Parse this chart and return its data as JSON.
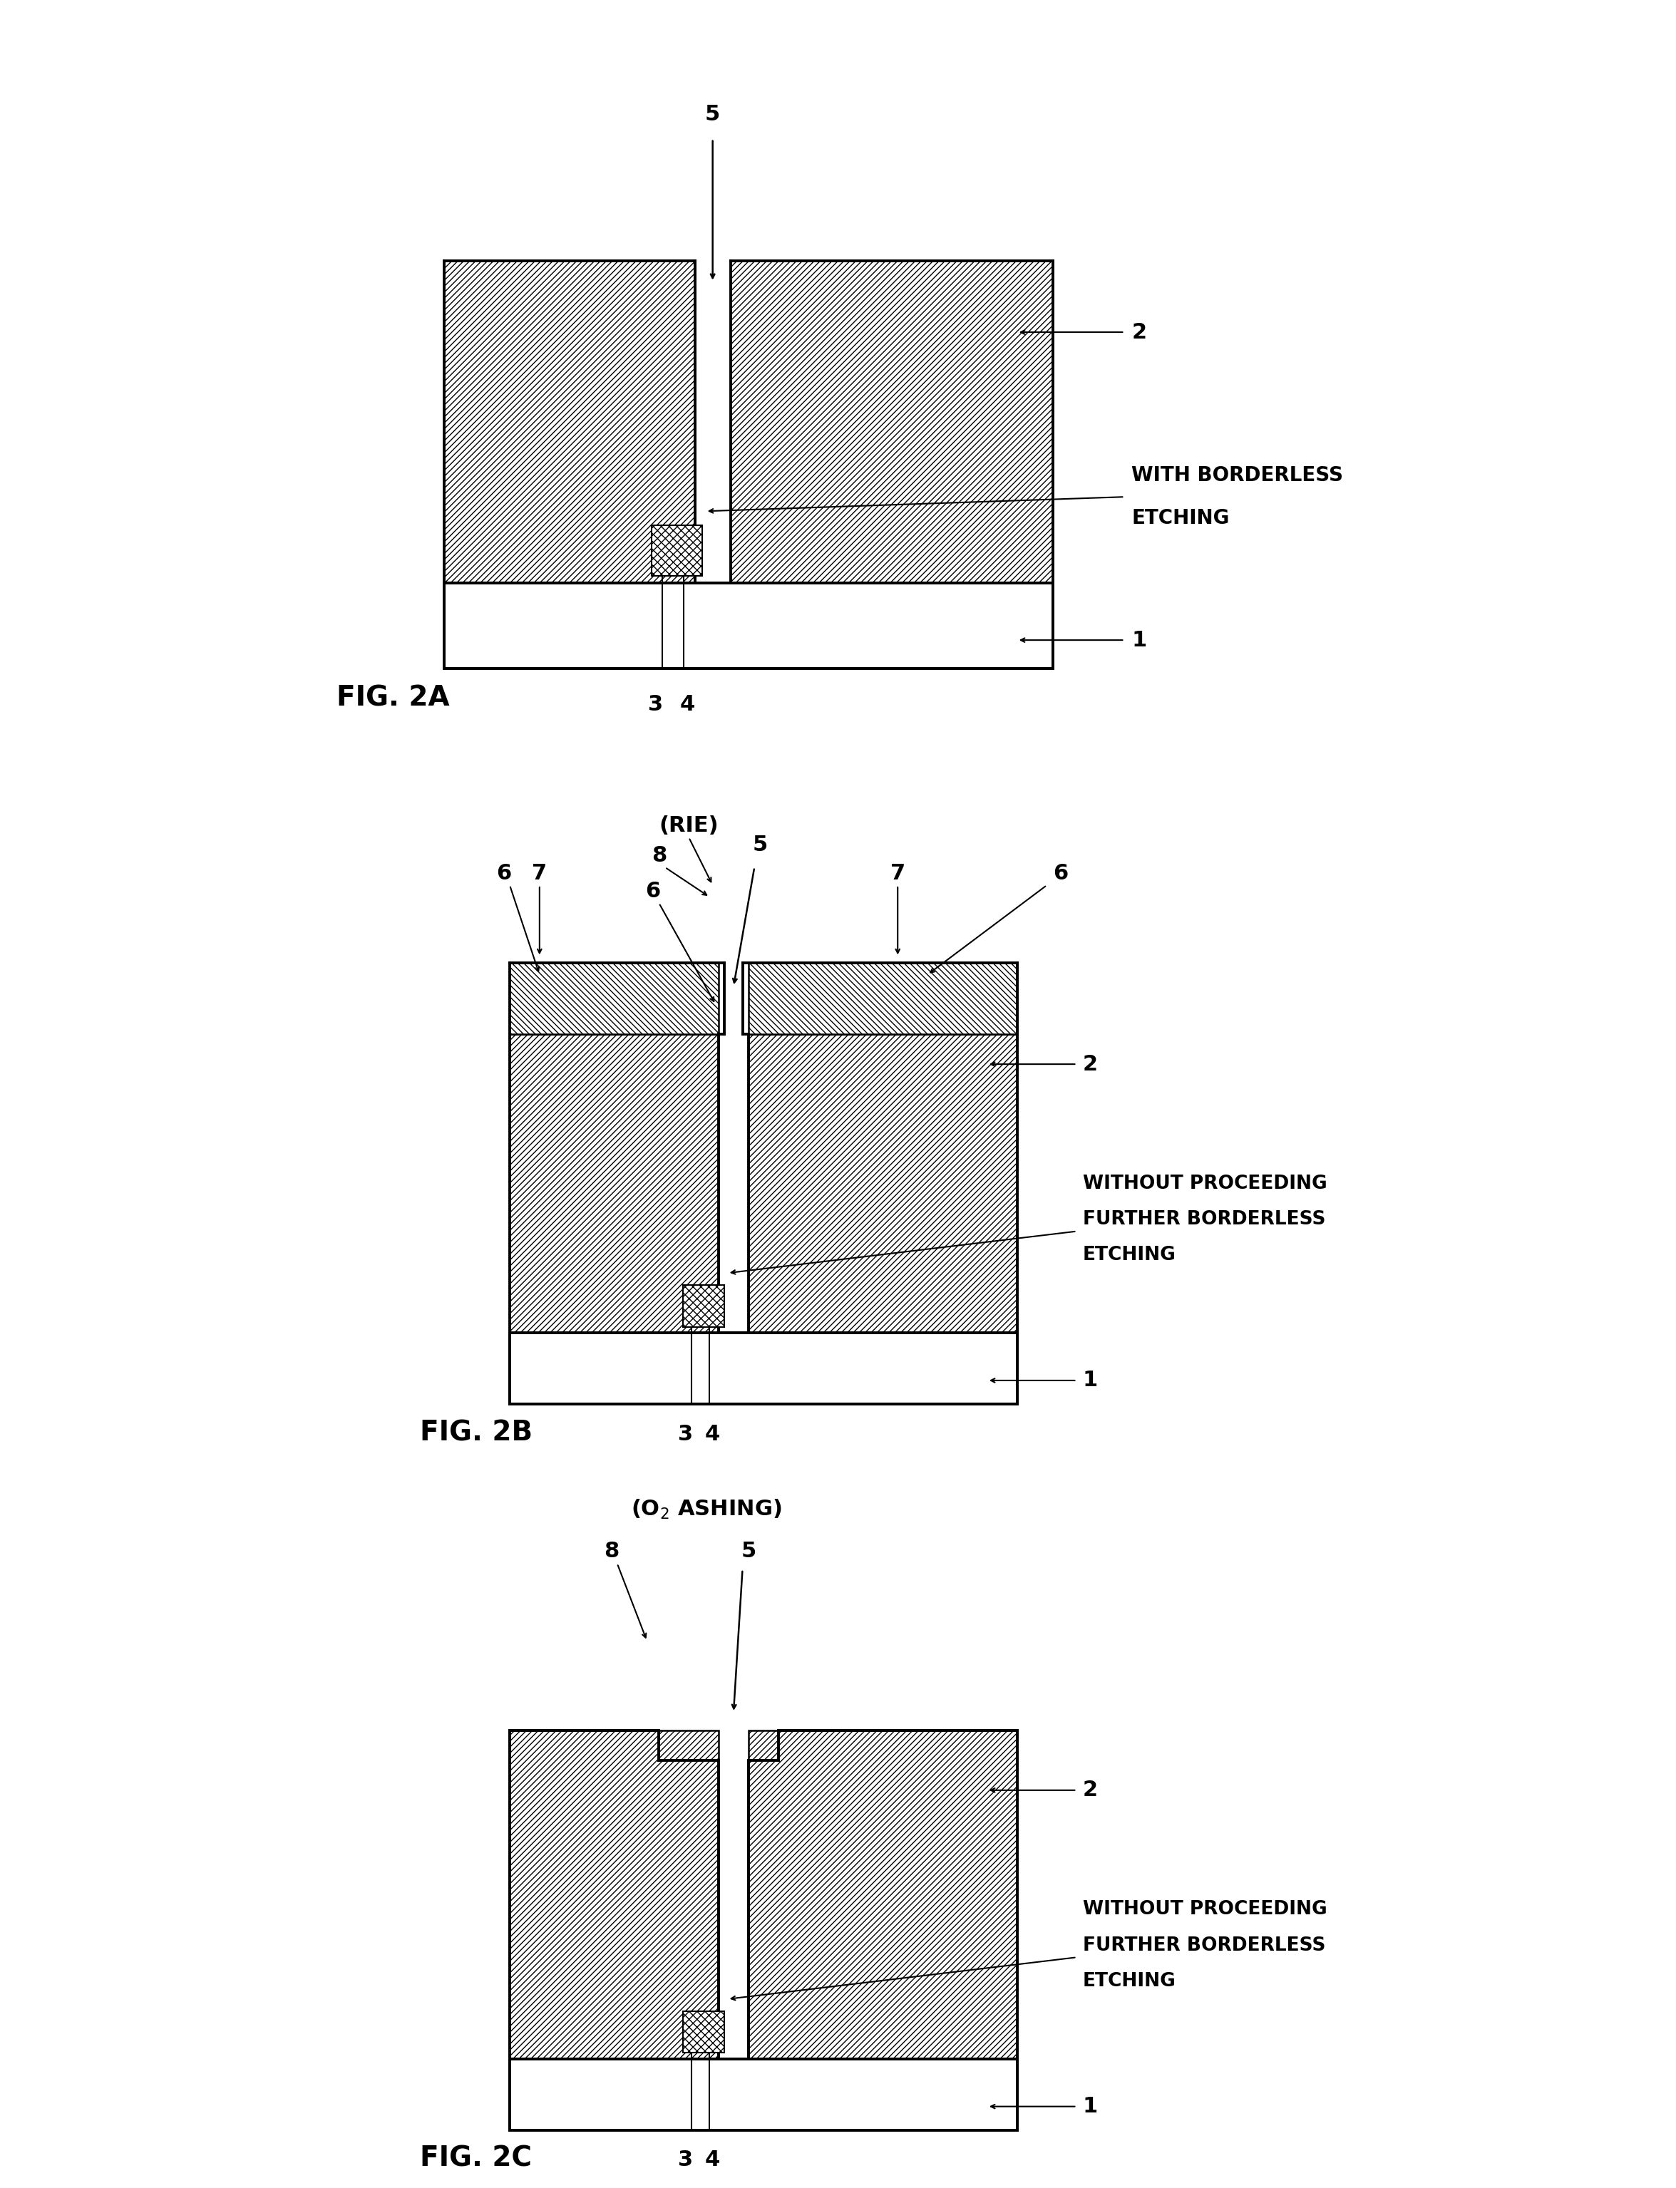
{
  "bg_color": "#ffffff",
  "line_color": "#000000",
  "hatch_color": "#000000",
  "fig_label_fontsize": 28,
  "annotation_fontsize": 22,
  "title_fontsize": 20,
  "diagrams": [
    {
      "label": "FIG. 2A"
    },
    {
      "label": "FIG. 2B"
    },
    {
      "label": "FIG. 2C"
    }
  ]
}
